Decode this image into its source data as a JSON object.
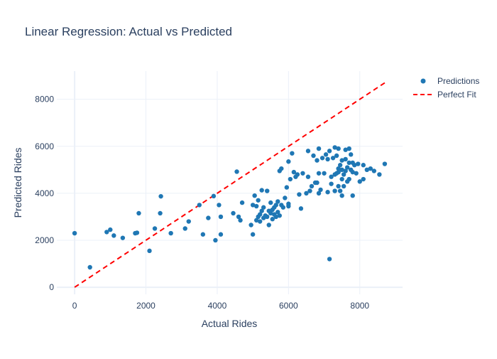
{
  "chart_data": {
    "type": "scatter",
    "title": "Linear Regression: Actual vs Predicted",
    "xlabel": "Actual Rides",
    "ylabel": "Predicted Rides",
    "xlim": [
      -500,
      9200
    ],
    "ylim": [
      -300,
      9200
    ],
    "x_ticks": [
      0,
      2000,
      4000,
      6000,
      8000
    ],
    "y_ticks": [
      0,
      2000,
      4000,
      6000,
      8000
    ],
    "grid": true,
    "legend_position": "top-right",
    "series": [
      {
        "name": "Predictions",
        "mode": "markers",
        "color": "#1f77b4",
        "points": [
          [
            0,
            2300
          ],
          [
            430,
            850
          ],
          [
            900,
            2350
          ],
          [
            1000,
            2450
          ],
          [
            1100,
            2200
          ],
          [
            1350,
            2100
          ],
          [
            1700,
            2300
          ],
          [
            1750,
            2320
          ],
          [
            1800,
            3150
          ],
          [
            2100,
            1550
          ],
          [
            2250,
            2500
          ],
          [
            2400,
            3150
          ],
          [
            2420,
            3870
          ],
          [
            2700,
            2300
          ],
          [
            3100,
            2500
          ],
          [
            3200,
            2800
          ],
          [
            3500,
            3500
          ],
          [
            3600,
            2250
          ],
          [
            3750,
            2950
          ],
          [
            3900,
            3880
          ],
          [
            3950,
            2000
          ],
          [
            4050,
            3500
          ],
          [
            4100,
            2250
          ],
          [
            4100,
            3000
          ],
          [
            4450,
            3150
          ],
          [
            4550,
            4920
          ],
          [
            4600,
            3000
          ],
          [
            4650,
            2850
          ],
          [
            4700,
            3600
          ],
          [
            4950,
            2650
          ],
          [
            5000,
            3500
          ],
          [
            5000,
            2250
          ],
          [
            5050,
            3900
          ],
          [
            5100,
            3450
          ],
          [
            5100,
            2850
          ],
          [
            5150,
            3700
          ],
          [
            5150,
            3000
          ],
          [
            5200,
            2800
          ],
          [
            5200,
            3100
          ],
          [
            5250,
            4130
          ],
          [
            5250,
            3250
          ],
          [
            5300,
            3400
          ],
          [
            5300,
            2950
          ],
          [
            5350,
            3050
          ],
          [
            5400,
            3000
          ],
          [
            5400,
            4100
          ],
          [
            5450,
            2650
          ],
          [
            5450,
            3250
          ],
          [
            5500,
            3600
          ],
          [
            5500,
            3150
          ],
          [
            5550,
            2900
          ],
          [
            5550,
            3300
          ],
          [
            5600,
            3400
          ],
          [
            5600,
            3100
          ],
          [
            5650,
            3500
          ],
          [
            5650,
            3000
          ],
          [
            5700,
            3650
          ],
          [
            5700,
            3200
          ],
          [
            5750,
            4950
          ],
          [
            5750,
            3050
          ],
          [
            5800,
            3500
          ],
          [
            5800,
            5050
          ],
          [
            5850,
            3400
          ],
          [
            5900,
            3800
          ],
          [
            5950,
            4250
          ],
          [
            6000,
            3450
          ],
          [
            6000,
            3550
          ],
          [
            6000,
            5350
          ],
          [
            6050,
            4600
          ],
          [
            6100,
            5700
          ],
          [
            6150,
            4900
          ],
          [
            6200,
            4700
          ],
          [
            6250,
            4800
          ],
          [
            6300,
            3950
          ],
          [
            6350,
            3350
          ],
          [
            6400,
            4850
          ],
          [
            6500,
            4000
          ],
          [
            6550,
            5800
          ],
          [
            6550,
            4700
          ],
          [
            6600,
            4100
          ],
          [
            6650,
            4300
          ],
          [
            6700,
            5600
          ],
          [
            6750,
            4450
          ],
          [
            6800,
            4450
          ],
          [
            6800,
            5400
          ],
          [
            6850,
            4000
          ],
          [
            6850,
            4850
          ],
          [
            6850,
            5900
          ],
          [
            6900,
            4150
          ],
          [
            6950,
            5500
          ],
          [
            7000,
            4850
          ],
          [
            7050,
            5650
          ],
          [
            7100,
            4050
          ],
          [
            7100,
            5450
          ],
          [
            7150,
            1200
          ],
          [
            7150,
            5800
          ],
          [
            7200,
            4400
          ],
          [
            7200,
            4700
          ],
          [
            7250,
            5500
          ],
          [
            7300,
            5950
          ],
          [
            7300,
            4100
          ],
          [
            7300,
            4800
          ],
          [
            7350,
            4850
          ],
          [
            7350,
            5600
          ],
          [
            7400,
            4300
          ],
          [
            7400,
            4900
          ],
          [
            7400,
            5050
          ],
          [
            7400,
            5900
          ],
          [
            7450,
            4100
          ],
          [
            7450,
            5200
          ],
          [
            7500,
            3900
          ],
          [
            7500,
            4600
          ],
          [
            7500,
            5000
          ],
          [
            7500,
            5400
          ],
          [
            7550,
            4300
          ],
          [
            7550,
            4800
          ],
          [
            7600,
            4950
          ],
          [
            7600,
            5450
          ],
          [
            7600,
            5850
          ],
          [
            7650,
            4500
          ],
          [
            7650,
            5100
          ],
          [
            7700,
            4600
          ],
          [
            7700,
            5300
          ],
          [
            7700,
            5900
          ],
          [
            7750,
            5000
          ],
          [
            7750,
            5650
          ],
          [
            7800,
            3900
          ],
          [
            7800,
            4900
          ],
          [
            7800,
            5300
          ],
          [
            7850,
            5200
          ],
          [
            7900,
            4850
          ],
          [
            7950,
            5250
          ],
          [
            8000,
            4500
          ],
          [
            8100,
            5200
          ],
          [
            8100,
            4600
          ],
          [
            8200,
            5000
          ],
          [
            8300,
            5050
          ],
          [
            8400,
            4950
          ],
          [
            8550,
            4800
          ],
          [
            8700,
            5250
          ]
        ]
      },
      {
        "name": "Perfect Fit",
        "mode": "lines",
        "dash": "dash",
        "color": "#ff0000",
        "points": [
          [
            0,
            0
          ],
          [
            8700,
            8700
          ]
        ]
      }
    ]
  }
}
